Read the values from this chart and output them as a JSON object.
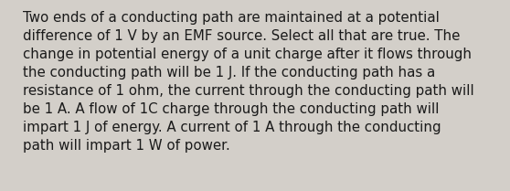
{
  "lines": [
    "Two ends of a conducting path are maintained at a potential",
    "difference of 1 V by an EMF source. Select all that are true. The",
    "change in potential energy of a unit charge after it flows through",
    "the conducting path will be 1 J. If the conducting path has a",
    "resistance of 1 ohm, the current through the conducting path will",
    "be 1 A. A flow of 1C charge through the conducting path will",
    "impart 1 J of energy. A current of 1 A through the conducting",
    "path will impart 1 W of power."
  ],
  "background_color": "#d3cfc9",
  "text_color": "#1a1a1a",
  "font_size": 10.8,
  "font_family": "DejaVu Sans",
  "fig_width": 5.58,
  "fig_height": 2.09,
  "dpi": 100,
  "linespacing": 1.42
}
